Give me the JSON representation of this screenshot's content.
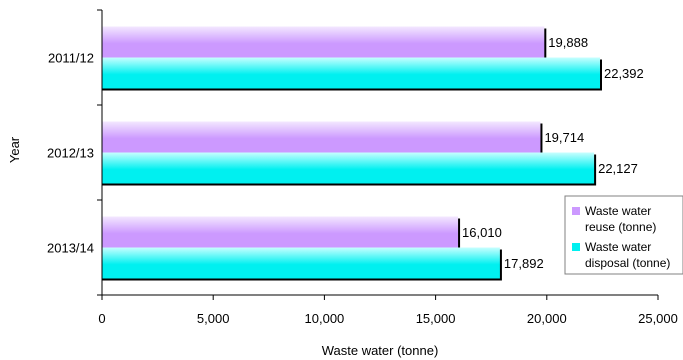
{
  "chart_data": {
    "type": "bar",
    "orientation": "horizontal",
    "title": "",
    "xlabel": "Waste water (tonne)",
    "ylabel": "Year",
    "xlim": [
      0,
      25000
    ],
    "xticks": [
      0,
      5000,
      10000,
      15000,
      20000,
      25000
    ],
    "xtick_labels": [
      "0",
      "5,000",
      "10,000",
      "15,000",
      "20,000",
      "25,000"
    ],
    "categories": [
      "2011/12",
      "2012/13",
      "2013/14"
    ],
    "series": [
      {
        "name_lines": [
          "Waste water",
          "reuse (tonne)"
        ],
        "values": [
          19888,
          19714,
          16010
        ],
        "labels": [
          "19,888",
          "19,714",
          "16,010"
        ],
        "color": "#cc99ff",
        "color_light": "#f3e8ff"
      },
      {
        "name_lines": [
          "Waste water",
          "disposal (tonne)"
        ],
        "values": [
          22392,
          22127,
          17892
        ],
        "labels": [
          "22,392",
          "22,127",
          "17,892"
        ],
        "color": "#00f0f0",
        "color_light": "#c8ffff"
      }
    ],
    "grid": false,
    "legend_position": "lower-right"
  }
}
